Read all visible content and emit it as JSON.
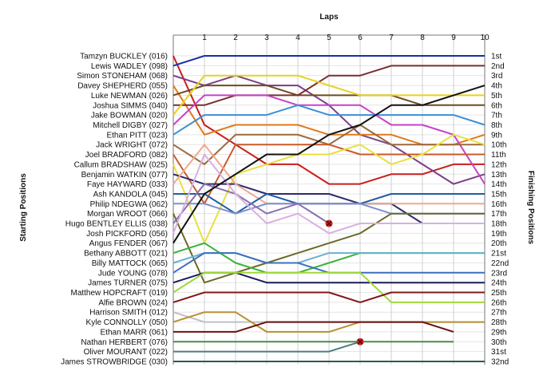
{
  "chart_data": {
    "type": "line",
    "title": "",
    "xlabel": "Laps",
    "ylabel_left": "Starting Positions",
    "ylabel_right": "Finishing Positions",
    "x_ticks": [
      "1",
      "2",
      "3",
      "4",
      "5",
      "6",
      "7",
      "8",
      "9",
      "10"
    ],
    "xlim": [
      0,
      10
    ],
    "ylim": [
      1,
      32
    ],
    "y_reversed": true,
    "grid": true,
    "finishing_positions": [
      "1st",
      "2nd",
      "3rd",
      "4th",
      "5th",
      "6th",
      "7th",
      "8th",
      "9th",
      "10th",
      "11th",
      "12th",
      "13th",
      "14th",
      "15th",
      "16th",
      "17th",
      "18th",
      "19th",
      "20th",
      "21st",
      "22nd",
      "23rd",
      "24th",
      "25th",
      "26th",
      "27th",
      "28th",
      "29th",
      "30th",
      "31st",
      "32nd"
    ],
    "series": [
      {
        "name": "Tamzyn BUCKLEY (016)",
        "color": "#c81d1d",
        "values": [
          1,
          8,
          10,
          12,
          12,
          14,
          14,
          13,
          13,
          12,
          12
        ]
      },
      {
        "name": "Lewis WADLEY (098)",
        "color": "#1a2ea8",
        "values": [
          2,
          1,
          1,
          1,
          1,
          1,
          1,
          1,
          1,
          1,
          1
        ]
      },
      {
        "name": "Simon STONEHAM (068)",
        "color": "#7a3f8a",
        "values": [
          3,
          4,
          3,
          4,
          4,
          6,
          9,
          10,
          12,
          14,
          13
        ]
      },
      {
        "name": "Davey SHEPHERD (055)",
        "color": "#e07a1c",
        "values": [
          4,
          9,
          8,
          8,
          8,
          9,
          9,
          9,
          10,
          10,
          9
        ]
      },
      {
        "name": "Luke NEWMAN (026)",
        "color": "#6f4a1e",
        "values": [
          5,
          4,
          4,
          4,
          5,
          5,
          5,
          5,
          6,
          6,
          6
        ]
      },
      {
        "name": "Joshua SIMMS (040)",
        "color": "#7b2e2e",
        "values": [
          6,
          6,
          5,
          5,
          5,
          3,
          3,
          2,
          2,
          2,
          2
        ]
      },
      {
        "name": "Jake BOWMAN (020)",
        "color": "#e6d21c",
        "values": [
          7,
          3,
          3,
          3,
          3,
          4,
          5,
          5,
          5,
          5,
          5
        ]
      },
      {
        "name": "Mitchell DIGBY (027)",
        "color": "#c642c6",
        "values": [
          8,
          5,
          5,
          5,
          6,
          6,
          6,
          8,
          8,
          9,
          14
        ]
      },
      {
        "name": "Ethan PITT (023)",
        "color": "#3a8fd6",
        "values": [
          9,
          7,
          7,
          7,
          6,
          7,
          7,
          7,
          7,
          7,
          8
        ]
      },
      {
        "name": "Jack WRIGHT (072)",
        "color": "#9b6a3a",
        "values": [
          10,
          12,
          9,
          9,
          9,
          10,
          8,
          10,
          10,
          10,
          10
        ]
      },
      {
        "name": "Joel BRADFORD (082)",
        "color": "#c85a2a",
        "values": [
          11,
          16,
          10,
          10,
          10,
          10,
          11,
          11,
          11,
          11,
          11
        ]
      },
      {
        "name": "Callum BRADSHAW (025)",
        "color": "#e8e040",
        "values": [
          12,
          20,
          13,
          12,
          11,
          11,
          10,
          12,
          11,
          9,
          10
        ]
      },
      {
        "name": "Benjamin WATKIN (077)",
        "color": "#2e2a6e",
        "values": [
          13,
          14,
          14,
          15,
          15,
          15,
          16,
          16,
          18,
          18,
          18
        ]
      },
      {
        "name": "Faye HAYWARD (033)",
        "color": "#f0a890",
        "values": [
          14,
          10,
          14,
          16,
          16,
          16,
          16,
          16,
          16,
          16,
          16
        ]
      },
      {
        "name": "Ash KANDOLA (045)",
        "color": "#1f5ea0",
        "values": [
          15,
          15,
          17,
          15,
          16,
          16,
          16,
          15,
          15,
          15,
          15
        ]
      },
      {
        "name": "Philip NDEGWA (062)",
        "color": "#7d8fcf",
        "values": [
          16,
          16,
          17,
          16,
          16,
          16,
          16,
          17,
          17,
          17,
          17
        ]
      },
      {
        "name": "Morgan WROOT (066)",
        "color": "#6b6a2a",
        "values": [
          17,
          24,
          23,
          22,
          21,
          20,
          19,
          17,
          17,
          17,
          17
        ]
      },
      {
        "name": "Hugo BENTLEY ELLIS (038)",
        "color": "#8a6fb0",
        "values": [
          18,
          14,
          15,
          17,
          16,
          18,
          null,
          null,
          null,
          null,
          null
        ]
      },
      {
        "name": "Josh PICKFORD (056)",
        "color": "#d9b0e0",
        "values": [
          19,
          11,
          15,
          18,
          17,
          19,
          18,
          18,
          18,
          18,
          18
        ]
      },
      {
        "name": "Angus FENDER (067)",
        "color": "#111111",
        "values": [
          20,
          15,
          13,
          11,
          11,
          9,
          8,
          6,
          6,
          5,
          4
        ]
      },
      {
        "name": "Bethany ABBOTT (021)",
        "color": "#3bb33b",
        "values": [
          21,
          20,
          22,
          23,
          23,
          22,
          21,
          21,
          21,
          21,
          21
        ]
      },
      {
        "name": "Billy MATTOCK (065)",
        "color": "#6ab0d0",
        "values": [
          22,
          21,
          21,
          22,
          22,
          21,
          21,
          21,
          21,
          21,
          21
        ]
      },
      {
        "name": "Jude YOUNG (078)",
        "color": "#3e6fc0",
        "values": [
          23,
          21,
          21,
          22,
          22,
          23,
          23,
          23,
          23,
          23,
          23
        ]
      },
      {
        "name": "James TURNER (075)",
        "color": "#1a1a5a",
        "values": [
          24,
          23,
          23,
          24,
          24,
          24,
          24,
          24,
          24,
          24,
          24
        ]
      },
      {
        "name": "Matthew HOPCRAFT (019)",
        "color": "#a0d83a",
        "values": [
          25,
          23,
          23,
          23,
          23,
          23,
          23,
          26,
          26,
          26,
          26
        ]
      },
      {
        "name": "Alfie BROWN (024)",
        "color": "#801818",
        "values": [
          26,
          25,
          25,
          25,
          25,
          25,
          26,
          25,
          25,
          25,
          25
        ]
      },
      {
        "name": "Harrison SMITH (012)",
        "color": "#c0c0c0",
        "values": [
          27,
          28,
          28,
          28,
          28,
          28,
          28,
          28,
          28,
          28,
          28
        ]
      },
      {
        "name": "Kyle CONNOLLY (050)",
        "color": "#b89030",
        "values": [
          28,
          27,
          27,
          29,
          29,
          29,
          28,
          28,
          28,
          28,
          28
        ]
      },
      {
        "name": "Ethan MARR (061)",
        "color": "#6a1010",
        "values": [
          29,
          29,
          29,
          28,
          28,
          28,
          28,
          28,
          28,
          29,
          null
        ]
      },
      {
        "name": "Nathan HERBERT (076)",
        "color": "#4a8a4a",
        "values": [
          30,
          30,
          30,
          30,
          30,
          30,
          30,
          30,
          30,
          30,
          null
        ]
      },
      {
        "name": "Oliver MOURANT (022)",
        "color": "#4a7e7e",
        "values": [
          31,
          31,
          31,
          31,
          31,
          31,
          30,
          null,
          null,
          null,
          null
        ]
      },
      {
        "name": "James STROWBRIDGE (030)",
        "color": "#2e5a4a",
        "values": [
          32,
          32,
          32,
          32,
          32,
          32,
          32,
          32,
          32,
          32,
          32
        ]
      }
    ],
    "retirements": [
      {
        "series": "Hugo BENTLEY ELLIS (038)",
        "lap": 5,
        "position": 18
      },
      {
        "series": "Oliver MOURANT (022)",
        "lap": 6,
        "position": 30
      }
    ]
  }
}
